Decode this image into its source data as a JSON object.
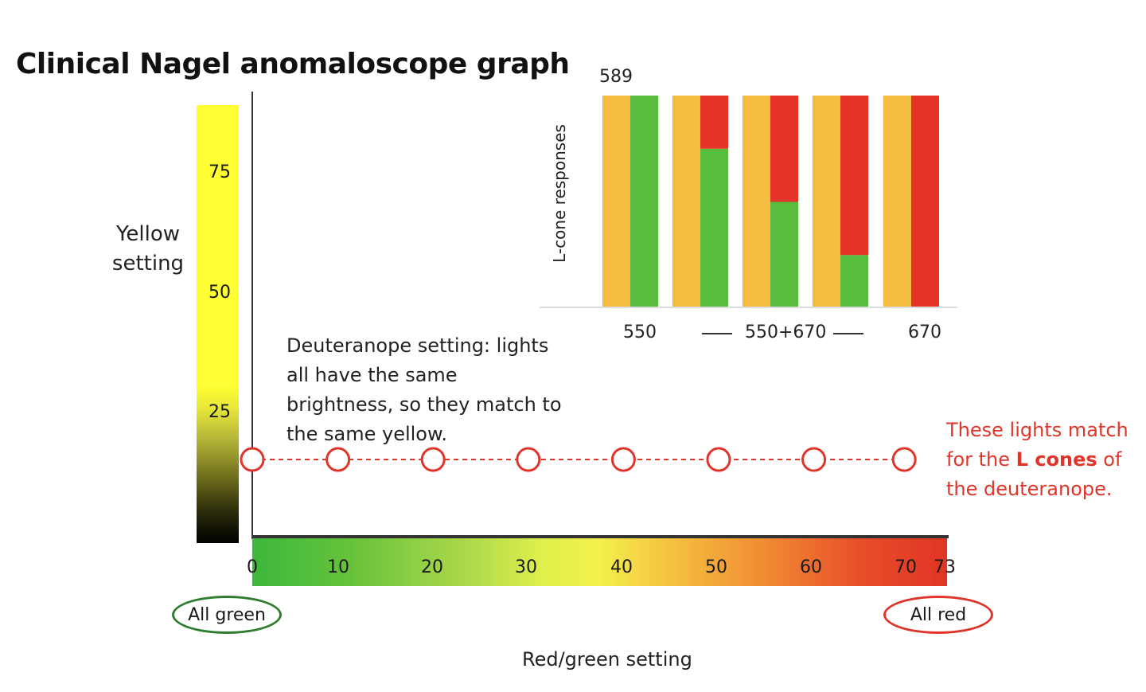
{
  "title": "Clinical Nagel anomaloscope graph",
  "colors": {
    "match_color": "#e03528",
    "green_oval": "#2f7d2f",
    "red_oval": "#e0332a",
    "inset_yellow": "#f5bc42",
    "inset_green": "#58bd3c",
    "inset_red": "#e5332a"
  },
  "yaxis": {
    "label": "Yellow setting",
    "ticks": [
      "75",
      "50",
      "25"
    ]
  },
  "xaxis": {
    "label": "Red/green setting",
    "ticks": [
      "0",
      "10",
      "20",
      "30",
      "40",
      "50",
      "60",
      "70",
      "73"
    ],
    "left_end_label": "All green",
    "right_end_label": "All red"
  },
  "annotations": {
    "deuteranope_note": "Deuteranope setting: lights all have the same brightness, so they match to the same yellow.",
    "red_note_part1": "These lights match for the ",
    "red_note_bold": "L cones",
    "red_note_part2": " of the deuteranope."
  },
  "inset": {
    "ylabel": "L-cone responses",
    "ref_label": "589",
    "xlabels": [
      "550",
      "550+670",
      "670"
    ]
  },
  "chart_data": [
    {
      "type": "scatter",
      "title": "Clinical Nagel anomaloscope graph",
      "xlabel": "Red/green setting",
      "ylabel": "Yellow setting",
      "xlim": [
        0,
        73
      ],
      "ylim": [
        0,
        91
      ],
      "series": [
        {
          "x": [
            0,
            9,
            19,
            29,
            39,
            49,
            59,
            68.5
          ],
          "y": [
            16,
            16,
            16,
            16,
            16,
            16,
            16,
            16
          ]
        }
      ]
    },
    {
      "type": "bar",
      "ylabel": "L-cone responses",
      "ylim": [
        0,
        1
      ],
      "bars": [
        {
          "yellow": 1,
          "green": 1.0,
          "red": 0.0
        },
        {
          "yellow": 1,
          "green": 0.75,
          "red": 0.25
        },
        {
          "yellow": 1,
          "green": 0.5,
          "red": 0.5
        },
        {
          "yellow": 1,
          "green": 0.25,
          "red": 0.75
        },
        {
          "yellow": 1,
          "green": 0.0,
          "red": 1.0
        }
      ]
    }
  ]
}
